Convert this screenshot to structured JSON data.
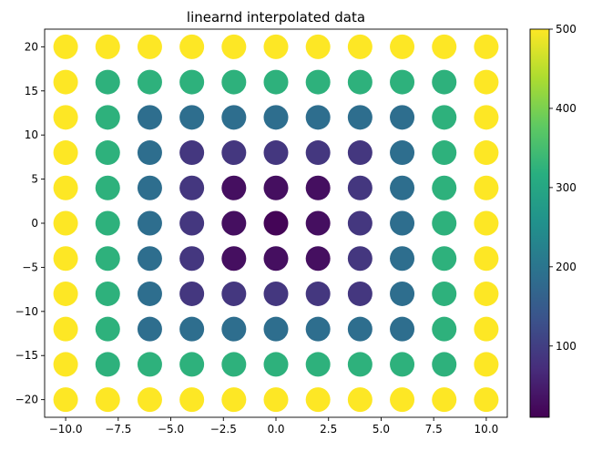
{
  "chart_data": {
    "type": "scatter",
    "title": "linearnd interpolated data",
    "xlabel": "",
    "ylabel": "",
    "xlim": [
      -11,
      11
    ],
    "ylim": [
      -22,
      22
    ],
    "x_ticks": [
      -10,
      -7.5,
      -5,
      -2.5,
      0,
      2.5,
      5,
      7.5,
      10
    ],
    "x_tick_labels": [
      "−10.0",
      "−7.5",
      "−5.0",
      "−2.5",
      "0.0",
      "2.5",
      "5.0",
      "7.5",
      "10.0"
    ],
    "y_ticks": [
      -20,
      -15,
      -10,
      -5,
      0,
      5,
      10,
      15,
      20
    ],
    "y_tick_labels": [
      "−20",
      "−15",
      "−10",
      "−5",
      "0",
      "5",
      "10",
      "15",
      "20"
    ],
    "grid": false,
    "colormap": "viridis",
    "colorbar": {
      "range": [
        10,
        500
      ],
      "ticks": [
        100,
        200,
        300,
        400,
        500
      ],
      "tick_labels": [
        "100",
        "200",
        "300",
        "400",
        "500"
      ]
    },
    "x_points": [
      -10,
      -8,
      -6,
      -4,
      -2,
      0,
      2,
      4,
      6,
      8,
      10
    ],
    "y_points": [
      20,
      16,
      12,
      8,
      4,
      0,
      -4,
      -8,
      -12,
      -16,
      -20
    ],
    "values": [
      [
        500,
        500,
        500,
        500,
        500,
        500,
        500,
        500,
        500,
        500,
        500
      ],
      [
        500,
        320,
        320,
        320,
        320,
        320,
        320,
        320,
        320,
        320,
        500
      ],
      [
        500,
        320,
        180,
        180,
        180,
        180,
        180,
        180,
        180,
        320,
        500
      ],
      [
        500,
        320,
        180,
        80,
        80,
        80,
        80,
        80,
        180,
        320,
        500
      ],
      [
        500,
        320,
        180,
        80,
        20,
        20,
        20,
        80,
        180,
        320,
        500
      ],
      [
        500,
        320,
        180,
        80,
        20,
        5,
        20,
        80,
        180,
        320,
        500
      ],
      [
        500,
        320,
        180,
        80,
        20,
        20,
        20,
        80,
        180,
        320,
        500
      ],
      [
        500,
        320,
        180,
        80,
        80,
        80,
        80,
        80,
        180,
        320,
        500
      ],
      [
        500,
        320,
        180,
        180,
        180,
        180,
        180,
        180,
        180,
        320,
        500
      ],
      [
        500,
        320,
        320,
        320,
        320,
        320,
        320,
        320,
        320,
        320,
        500
      ],
      [
        500,
        500,
        500,
        500,
        500,
        500,
        500,
        500,
        500,
        500,
        500
      ]
    ]
  }
}
